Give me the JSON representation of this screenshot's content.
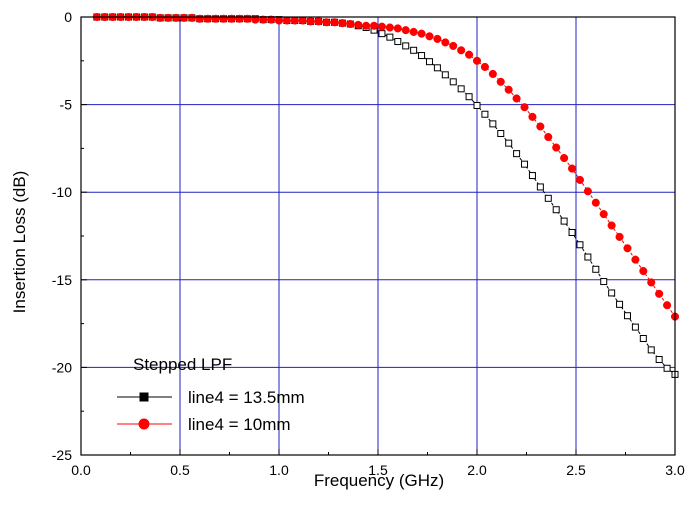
{
  "chart_data": {
    "type": "line",
    "xlabel": "Frequency (GHz)",
    "ylabel": "Insertion Loss (dB)",
    "xlim": [
      0.0,
      3.0
    ],
    "ylim": [
      -25,
      0
    ],
    "x_ticks": [
      0.0,
      0.5,
      1.0,
      1.5,
      2.0,
      2.5,
      3.0
    ],
    "x_tick_labels": [
      "0.0",
      "0.5",
      "1.0",
      "1.5",
      "2.0",
      "2.5",
      "3.0"
    ],
    "y_ticks": [
      0,
      -5,
      -10,
      -15,
      -20,
      -25
    ],
    "y_tick_labels": [
      "0",
      "-5",
      "-10",
      "-15",
      "-20",
      "-25"
    ],
    "grid": true,
    "legend": {
      "title": "Stepped LPF",
      "placement": "bottom-left"
    },
    "series": [
      {
        "name": "line4 = 13.5mm",
        "color": "#000000",
        "marker": "open-square",
        "points": [
          [
            0.08,
            0.0
          ],
          [
            0.12,
            0.0
          ],
          [
            0.16,
            0.0
          ],
          [
            0.2,
            0.0
          ],
          [
            0.24,
            0.0
          ],
          [
            0.28,
            0.0
          ],
          [
            0.32,
            0.0
          ],
          [
            0.36,
            0.0
          ],
          [
            0.4,
            -0.05
          ],
          [
            0.44,
            -0.05
          ],
          [
            0.48,
            -0.05
          ],
          [
            0.52,
            -0.05
          ],
          [
            0.56,
            -0.05
          ],
          [
            0.6,
            -0.1
          ],
          [
            0.64,
            -0.1
          ],
          [
            0.68,
            -0.1
          ],
          [
            0.72,
            -0.1
          ],
          [
            0.76,
            -0.1
          ],
          [
            0.8,
            -0.1
          ],
          [
            0.84,
            -0.1
          ],
          [
            0.88,
            -0.1
          ],
          [
            0.92,
            -0.15
          ],
          [
            0.96,
            -0.15
          ],
          [
            1.0,
            -0.15
          ],
          [
            1.04,
            -0.2
          ],
          [
            1.08,
            -0.2
          ],
          [
            1.12,
            -0.2
          ],
          [
            1.16,
            -0.25
          ],
          [
            1.2,
            -0.25
          ],
          [
            1.24,
            -0.3
          ],
          [
            1.28,
            -0.3
          ],
          [
            1.32,
            -0.35
          ],
          [
            1.36,
            -0.4
          ],
          [
            1.4,
            -0.5
          ],
          [
            1.44,
            -0.6
          ],
          [
            1.48,
            -0.75
          ],
          [
            1.52,
            -0.95
          ],
          [
            1.56,
            -1.15
          ],
          [
            1.6,
            -1.4
          ],
          [
            1.64,
            -1.65
          ],
          [
            1.68,
            -1.9
          ],
          [
            1.72,
            -2.2
          ],
          [
            1.76,
            -2.55
          ],
          [
            1.8,
            -2.9
          ],
          [
            1.84,
            -3.3
          ],
          [
            1.88,
            -3.7
          ],
          [
            1.92,
            -4.1
          ],
          [
            1.96,
            -4.55
          ],
          [
            2.0,
            -5.05
          ],
          [
            2.04,
            -5.55
          ],
          [
            2.08,
            -6.1
          ],
          [
            2.12,
            -6.65
          ],
          [
            2.16,
            -7.2
          ],
          [
            2.2,
            -7.8
          ],
          [
            2.24,
            -8.4
          ],
          [
            2.28,
            -9.05
          ],
          [
            2.32,
            -9.7
          ],
          [
            2.36,
            -10.35
          ],
          [
            2.4,
            -11.0
          ],
          [
            2.44,
            -11.65
          ],
          [
            2.48,
            -12.3
          ],
          [
            2.52,
            -13.0
          ],
          [
            2.56,
            -13.7
          ],
          [
            2.6,
            -14.4
          ],
          [
            2.64,
            -15.1
          ],
          [
            2.68,
            -15.75
          ],
          [
            2.72,
            -16.4
          ],
          [
            2.76,
            -17.05
          ],
          [
            2.8,
            -17.7
          ],
          [
            2.84,
            -18.35
          ],
          [
            2.88,
            -19.0
          ],
          [
            2.92,
            -19.55
          ],
          [
            2.96,
            -20.05
          ],
          [
            3.0,
            -20.4
          ]
        ]
      },
      {
        "name": "line4 = 10mm",
        "color": "#ff0000",
        "marker": "filled-circle",
        "points": [
          [
            0.08,
            0.0
          ],
          [
            0.12,
            0.0
          ],
          [
            0.16,
            0.0
          ],
          [
            0.2,
            0.0
          ],
          [
            0.24,
            0.0
          ],
          [
            0.28,
            0.0
          ],
          [
            0.32,
            0.0
          ],
          [
            0.36,
            0.0
          ],
          [
            0.4,
            -0.05
          ],
          [
            0.44,
            -0.05
          ],
          [
            0.48,
            -0.05
          ],
          [
            0.52,
            -0.05
          ],
          [
            0.56,
            -0.05
          ],
          [
            0.6,
            -0.1
          ],
          [
            0.64,
            -0.1
          ],
          [
            0.68,
            -0.1
          ],
          [
            0.72,
            -0.1
          ],
          [
            0.76,
            -0.1
          ],
          [
            0.8,
            -0.1
          ],
          [
            0.84,
            -0.1
          ],
          [
            0.88,
            -0.15
          ],
          [
            0.92,
            -0.15
          ],
          [
            0.96,
            -0.15
          ],
          [
            1.0,
            -0.2
          ],
          [
            1.04,
            -0.2
          ],
          [
            1.08,
            -0.2
          ],
          [
            1.12,
            -0.2
          ],
          [
            1.16,
            -0.25
          ],
          [
            1.2,
            -0.25
          ],
          [
            1.24,
            -0.3
          ],
          [
            1.28,
            -0.3
          ],
          [
            1.32,
            -0.35
          ],
          [
            1.36,
            -0.4
          ],
          [
            1.4,
            -0.45
          ],
          [
            1.44,
            -0.5
          ],
          [
            1.48,
            -0.5
          ],
          [
            1.52,
            -0.55
          ],
          [
            1.56,
            -0.6
          ],
          [
            1.6,
            -0.65
          ],
          [
            1.64,
            -0.75
          ],
          [
            1.68,
            -0.85
          ],
          [
            1.72,
            -0.95
          ],
          [
            1.76,
            -1.1
          ],
          [
            1.8,
            -1.25
          ],
          [
            1.84,
            -1.45
          ],
          [
            1.88,
            -1.65
          ],
          [
            1.92,
            -1.9
          ],
          [
            1.96,
            -2.15
          ],
          [
            2.0,
            -2.5
          ],
          [
            2.04,
            -2.85
          ],
          [
            2.08,
            -3.25
          ],
          [
            2.12,
            -3.7
          ],
          [
            2.16,
            -4.15
          ],
          [
            2.2,
            -4.65
          ],
          [
            2.24,
            -5.15
          ],
          [
            2.28,
            -5.7
          ],
          [
            2.32,
            -6.25
          ],
          [
            2.36,
            -6.85
          ],
          [
            2.4,
            -7.45
          ],
          [
            2.44,
            -8.05
          ],
          [
            2.48,
            -8.65
          ],
          [
            2.52,
            -9.3
          ],
          [
            2.56,
            -9.95
          ],
          [
            2.6,
            -10.6
          ],
          [
            2.64,
            -11.25
          ],
          [
            2.68,
            -11.9
          ],
          [
            2.72,
            -12.55
          ],
          [
            2.76,
            -13.2
          ],
          [
            2.8,
            -13.85
          ],
          [
            2.84,
            -14.5
          ],
          [
            2.88,
            -15.15
          ],
          [
            2.92,
            -15.8
          ],
          [
            2.96,
            -16.45
          ],
          [
            3.0,
            -17.1
          ]
        ]
      }
    ]
  }
}
